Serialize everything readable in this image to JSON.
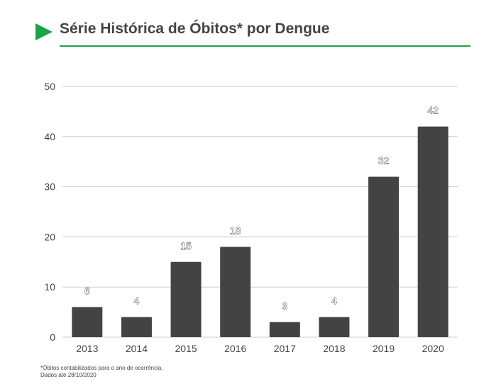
{
  "header": {
    "title": "Série Histórica de Óbitos* por Dengue",
    "accent_color": "#1aa34a",
    "arrow_icon": "play-triangle-icon"
  },
  "chart_data": {
    "type": "bar",
    "title": "Série Histórica de Óbitos* por Dengue",
    "xlabel": "",
    "ylabel": "",
    "categories": [
      "2013",
      "2014",
      "2015",
      "2016",
      "2017",
      "2018",
      "2019",
      "2020"
    ],
    "series": [
      {
        "values": [
          6,
          4,
          15,
          18,
          3,
          4,
          32,
          42
        ]
      }
    ],
    "ylim": [
      0,
      50
    ],
    "yticks": [
      "0",
      "10",
      "20",
      "30",
      "40",
      "50"
    ],
    "data_labels": [
      "6",
      "4",
      "15",
      "18",
      "3",
      "4",
      "32",
      "42"
    ],
    "grid": true,
    "legend": "none",
    "bar_color": "#434343",
    "grid_color": "#cccccc"
  },
  "footnote": {
    "line1": "*Óbitos contabilizados para o ano de ocorrência,",
    "line2": "Dados até 28/10/2020"
  }
}
